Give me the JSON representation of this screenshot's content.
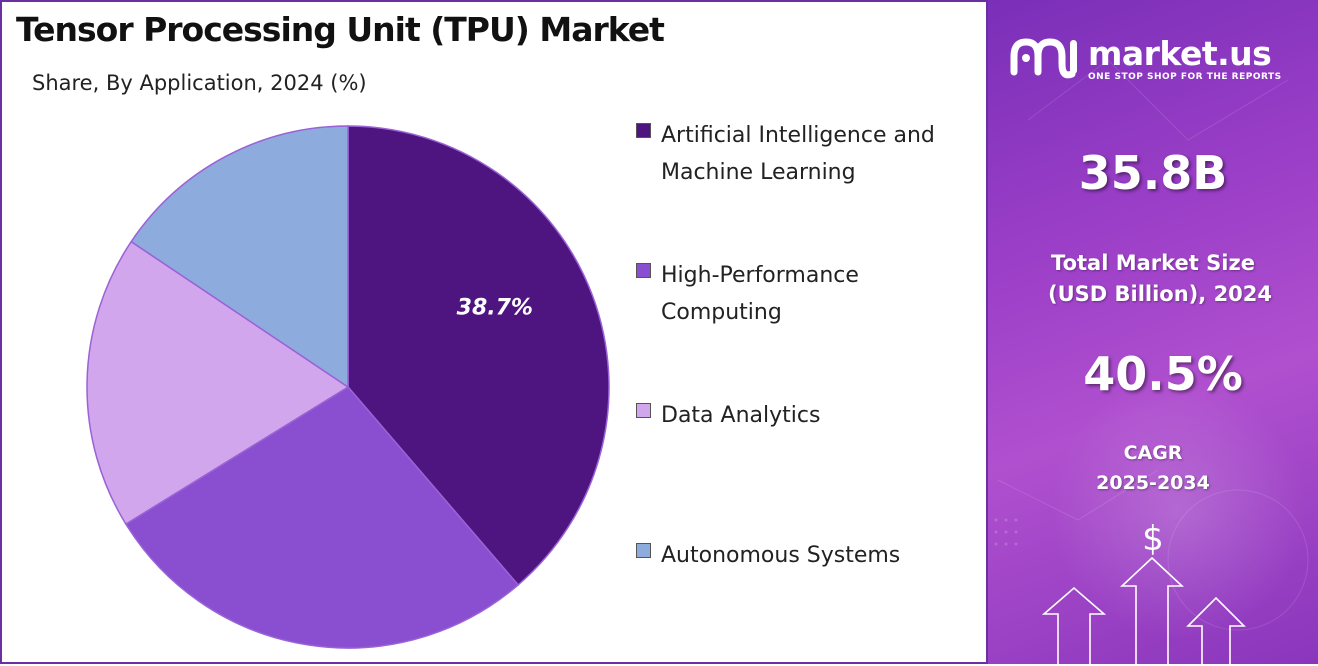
{
  "chart_data": {
    "type": "pie",
    "title": "Tensor Processing Unit (TPU) Market",
    "subtitle": "Share, By Application, 2024 (%)",
    "categories": [
      "Artificial Intelligence and Machine Learning",
      "High-Performance Computing",
      "Data Analytics",
      "Autonomous Systems"
    ],
    "values": [
      38.7,
      27.5,
      18.2,
      15.6
    ],
    "colors": [
      "#4e1581",
      "#8a4fd0",
      "#d2a6ec",
      "#8eabdd"
    ],
    "data_labels": [
      "38.7%",
      "",
      "",
      ""
    ],
    "legend_position": "right"
  },
  "legend": {
    "items": [
      {
        "line1": "Artificial Intelligence and",
        "line2": "Machine Learning"
      },
      {
        "line1": "High-Performance",
        "line2": "Computing"
      },
      {
        "line1": "Data Analytics",
        "line2": ""
      },
      {
        "line1": "Autonomous Systems",
        "line2": ""
      }
    ]
  },
  "brand": {
    "name": "market.us",
    "tagline": "ONE STOP SHOP FOR THE REPORTS",
    "logo_icon": "market-us-logo"
  },
  "stats": {
    "market_size": "35.8B",
    "market_size_label_line1": "Total Market Size",
    "market_size_label_line2": "(USD Billion), 2024",
    "cagr": "40.5%",
    "cagr_label_line1": "CAGR",
    "cagr_label_line2": "2025-2034"
  },
  "decoration": {
    "currency_symbol": "$",
    "icons": [
      "dollar-icon",
      "up-arrow-icon"
    ]
  },
  "colors": {
    "frame_border": "#6a2fa0",
    "panel_bg": "#9c3fc8"
  }
}
